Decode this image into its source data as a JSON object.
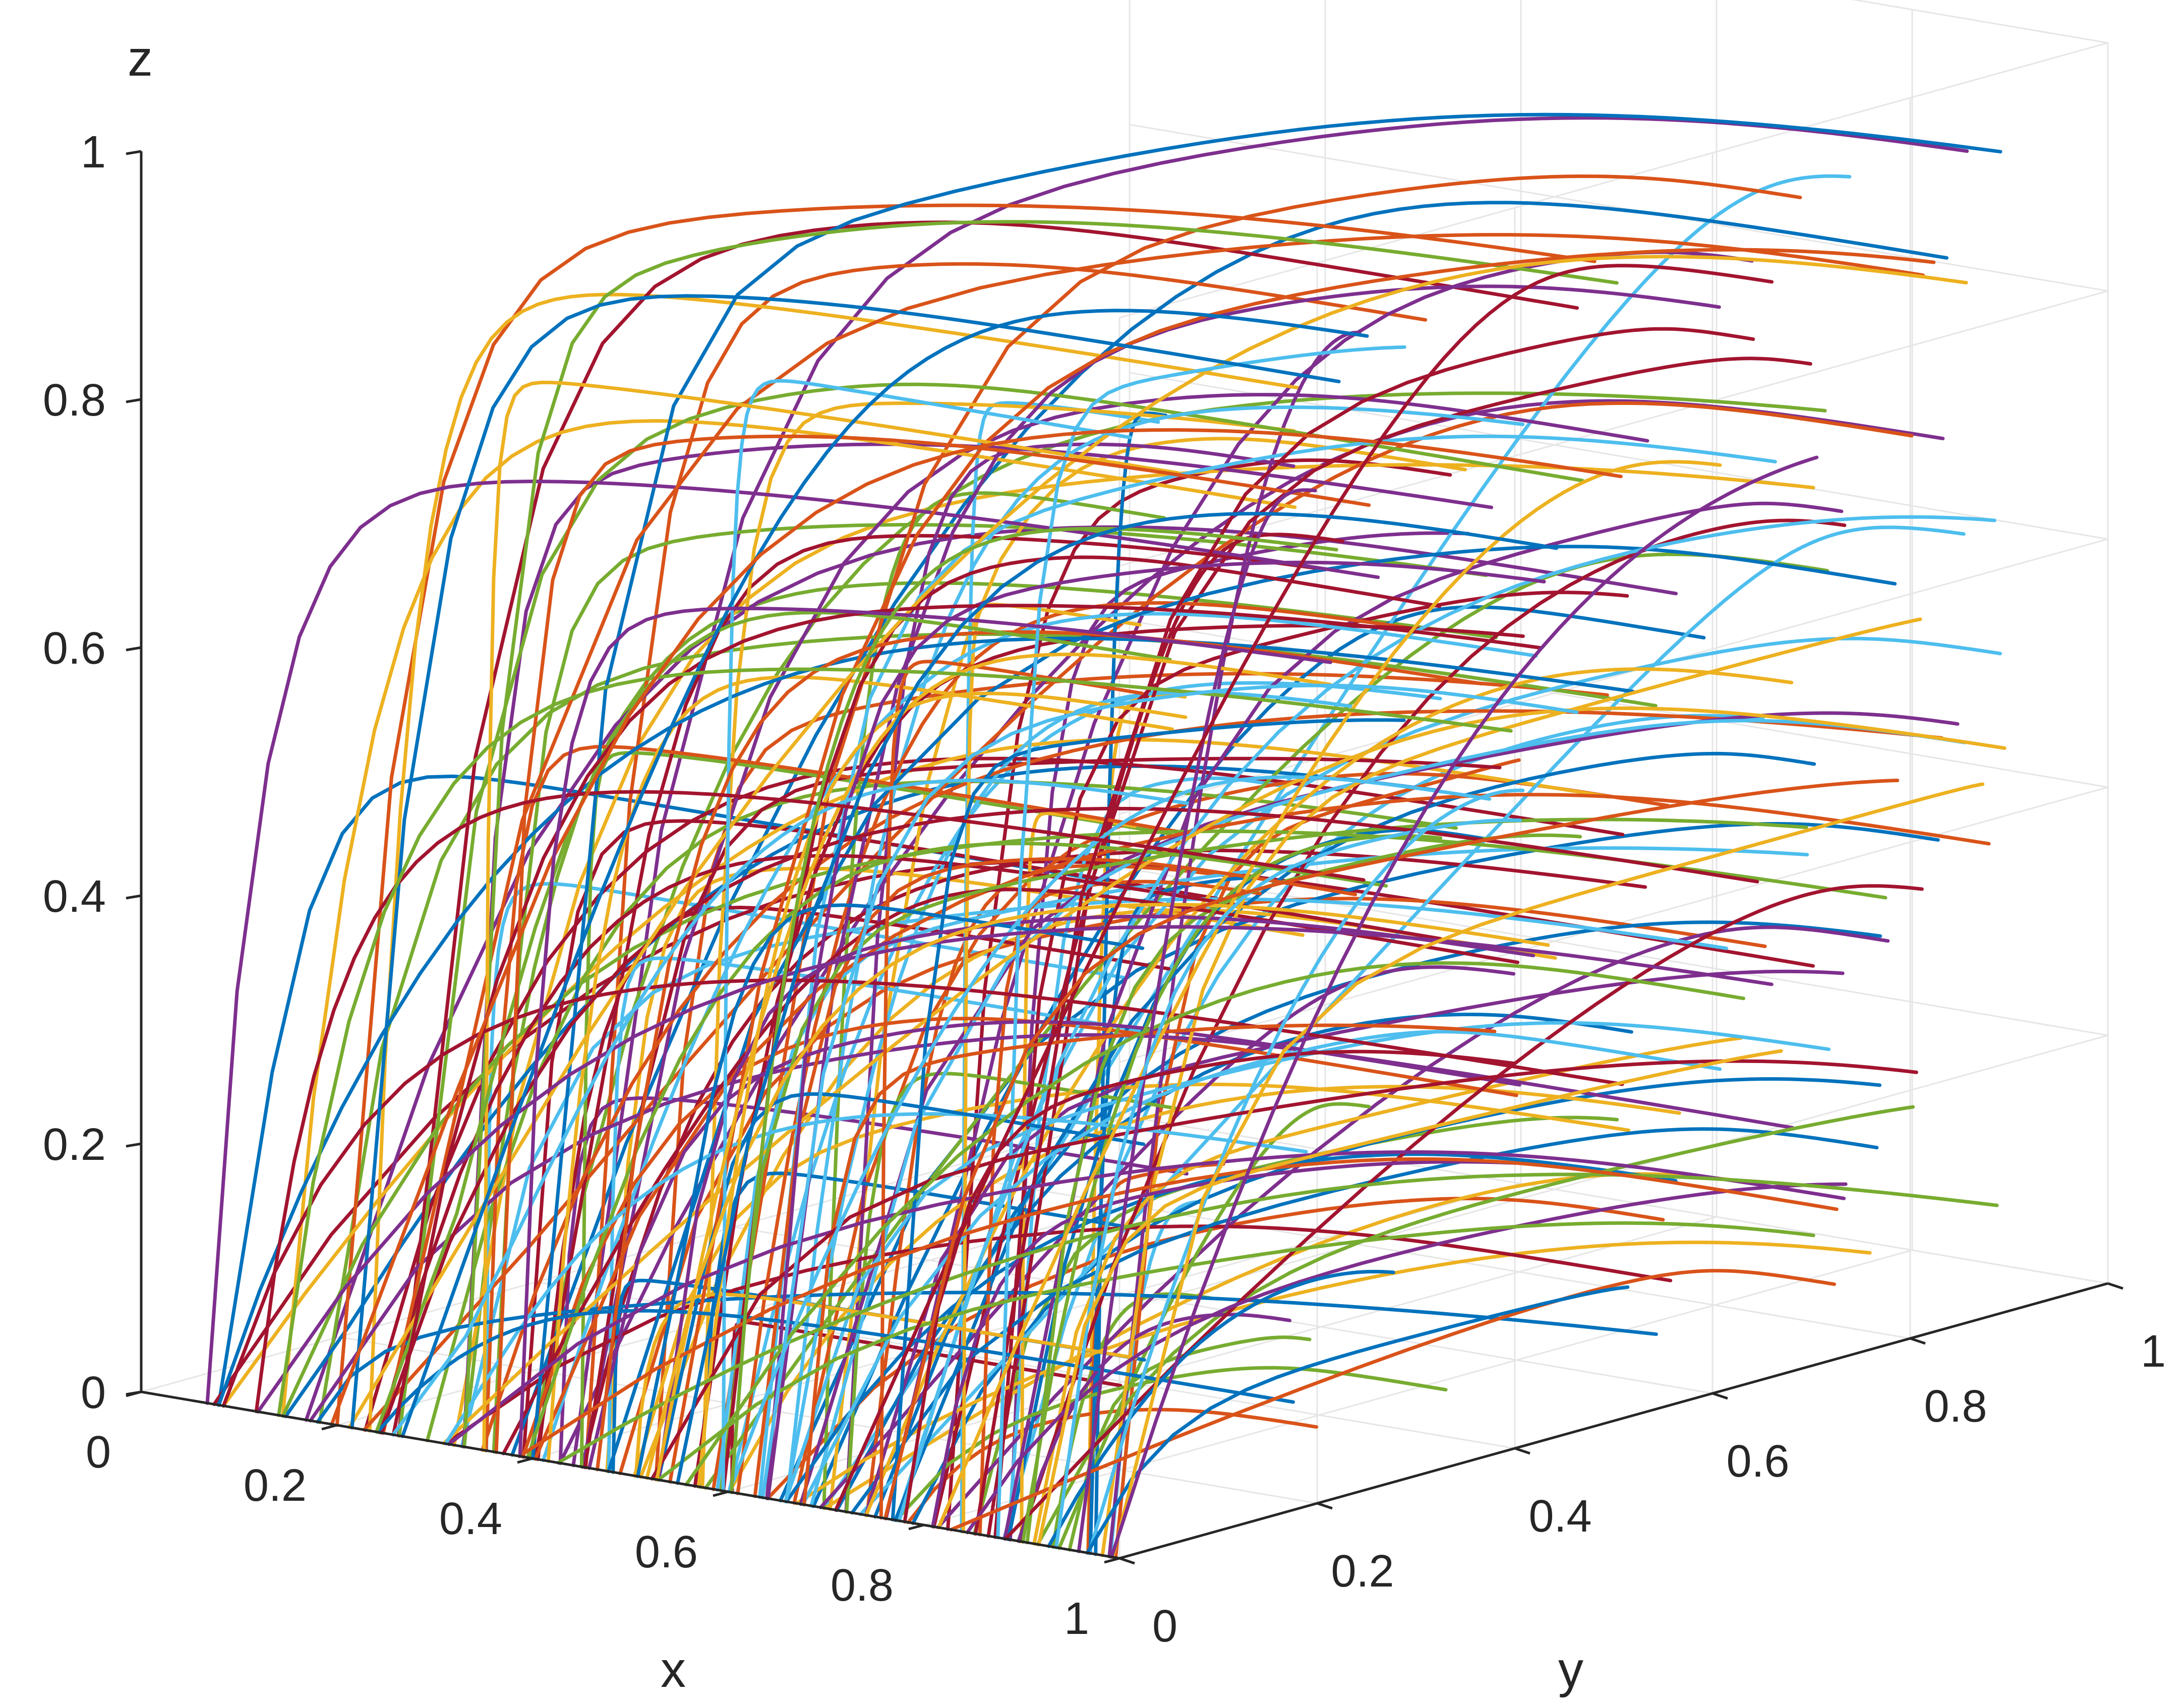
{
  "chart_data": {
    "type": "line",
    "projection": "3d",
    "title": "",
    "xlabel": "x",
    "ylabel": "y",
    "zlabel": "z",
    "xlim": [
      0,
      1
    ],
    "ylim": [
      0,
      1
    ],
    "zlim": [
      0,
      1
    ],
    "grid": true,
    "legend": "none",
    "x_ticks": [
      "0",
      "0.2",
      "0.4",
      "0.6",
      "0.8",
      "1"
    ],
    "y_ticks": [
      "0",
      "0.2",
      "0.4",
      "0.6",
      "0.8",
      "1"
    ],
    "z_ticks": [
      "0",
      "0.2",
      "0.4",
      "0.6",
      "0.8",
      "1"
    ],
    "palette": [
      "#0072BD",
      "#D95319",
      "#EDB120",
      "#7E2F8E",
      "#77AC30",
      "#4DBEEE",
      "#A2142F"
    ],
    "trajectory_set": {
      "count": 200,
      "start_x": [
        0.06,
        1.0
      ],
      "start_y": 0,
      "start_z": 0,
      "end_x": 1,
      "end_y": [
        0,
        0.9
      ],
      "end_z": [
        0.05,
        0.95
      ]
    }
  }
}
